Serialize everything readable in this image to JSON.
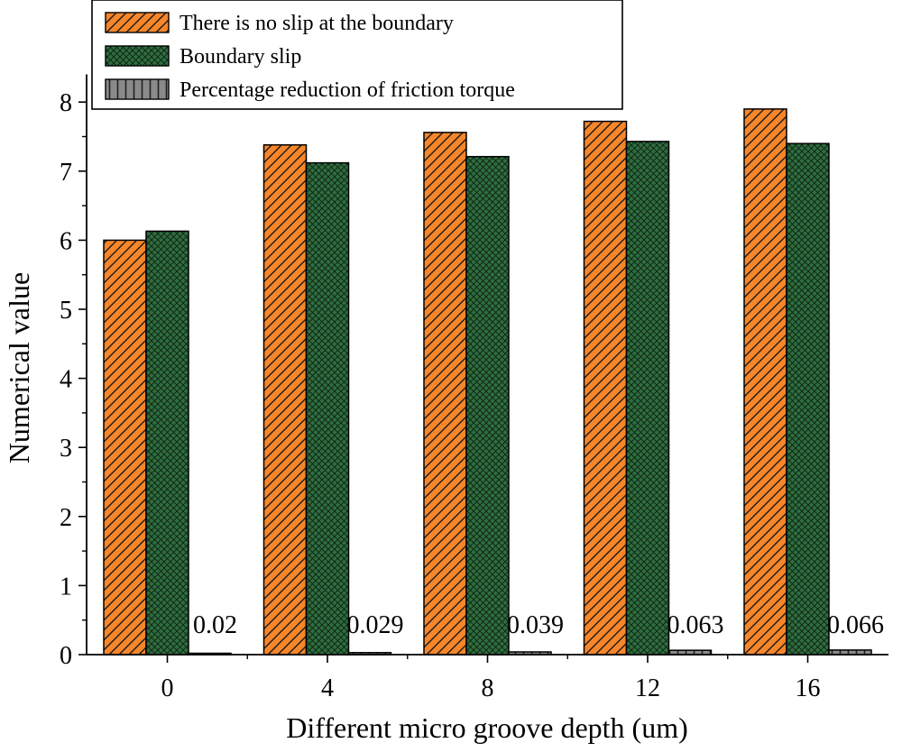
{
  "chart_data": {
    "type": "bar",
    "title": "",
    "xlabel": "Different micro groove depth (um)",
    "ylabel": "Numerical value",
    "categories": [
      "0",
      "4",
      "8",
      "12",
      "16"
    ],
    "ylim": [
      0,
      8.4
    ],
    "yticks": [
      "0",
      "1",
      "2",
      "3",
      "4",
      "5",
      "6",
      "7",
      "8"
    ],
    "series": [
      {
        "name": "There is no slip at the boundary",
        "values": [
          6.0,
          7.38,
          7.56,
          7.72,
          7.9
        ],
        "color": "#f7862a",
        "pattern": "diagonal"
      },
      {
        "name": "Boundary slip",
        "values": [
          6.13,
          7.12,
          7.21,
          7.43,
          7.4
        ],
        "color": "#2e6e3f",
        "pattern": "crosshatch"
      },
      {
        "name": "Percentage reduction of friction torque",
        "values": [
          0.02,
          0.029,
          0.039,
          0.063,
          0.066
        ],
        "color": "#8a8a8a",
        "pattern": "vertical"
      }
    ],
    "data_labels": [
      "0.02",
      "0.029",
      "0.039",
      "0.063",
      "0.066"
    ],
    "legend_position": "top-left",
    "grid": false
  }
}
